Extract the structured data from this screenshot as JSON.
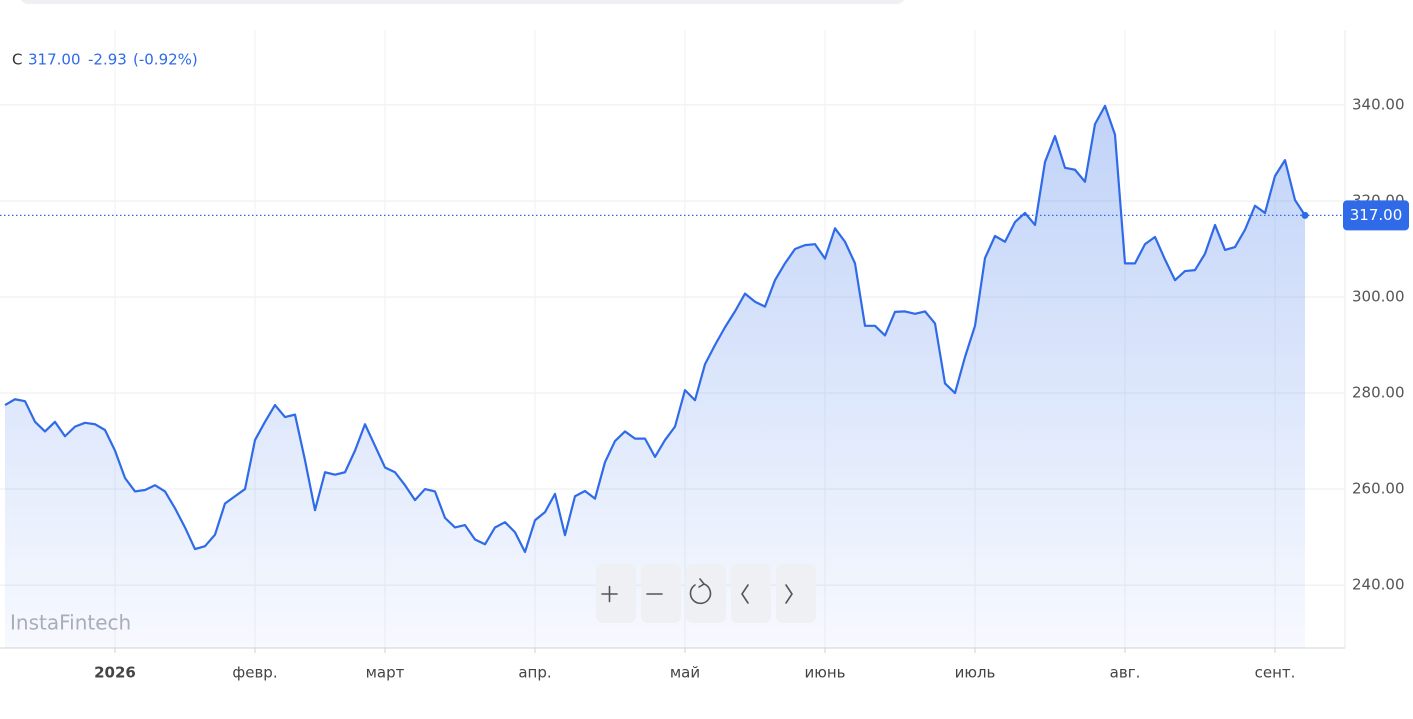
{
  "chart_data": {
    "type": "area",
    "symbol": "C",
    "last_price": {
      "value": 317,
      "label": "317.00"
    },
    "change": "-2.93",
    "change_pct": "(-0.92%)",
    "watermark": "InstaFintech",
    "color": "#2f6be8",
    "grid": true,
    "categories": [
      null,
      null,
      null,
      null,
      null,
      null,
      null,
      null,
      null,
      null,
      null,
      "2026",
      null,
      null,
      null,
      null,
      null,
      null,
      null,
      null,
      null,
      null,
      null,
      null,
      null,
      "февр.",
      null,
      null,
      null,
      null,
      null,
      null,
      null,
      null,
      null,
      null,
      null,
      null,
      "март",
      null,
      null,
      null,
      null,
      null,
      null,
      null,
      null,
      null,
      null,
      null,
      null,
      null,
      null,
      "апр.",
      null,
      null,
      null,
      null,
      null,
      null,
      null,
      null,
      null,
      null,
      null,
      null,
      null,
      null,
      "май",
      null,
      null,
      null,
      null,
      null,
      null,
      null,
      null,
      null,
      null,
      null,
      null,
      null,
      "июнь",
      null,
      null,
      null,
      null,
      null,
      null,
      null,
      null,
      null,
      null,
      null,
      null,
      null,
      null,
      "июль",
      null,
      null,
      null,
      null,
      null,
      null,
      null,
      null,
      null,
      null,
      null,
      null,
      null,
      null,
      "авг.",
      null,
      null,
      null,
      null,
      null,
      null,
      null,
      null,
      null,
      null,
      null,
      null,
      null,
      null,
      "сент.",
      null,
      null,
      null
    ],
    "values": [
      277.5,
      278.7,
      278.3,
      274,
      272,
      274,
      271,
      273,
      273.8,
      273.5,
      272.3,
      268,
      262.3,
      259.5,
      259.8,
      260.8,
      259.5,
      256,
      252,
      247.5,
      248.1,
      250.5,
      257,
      258.5,
      260,
      270.2,
      274,
      277.5,
      275,
      275.5,
      266,
      255.6,
      263.5,
      263,
      263.5,
      268,
      273.5,
      269,
      264.5,
      263.5,
      260.8,
      257.7,
      260,
      259.5,
      254,
      252,
      252.5,
      249.5,
      248.5,
      252,
      253.1,
      251,
      246.9,
      253.5,
      255.2,
      259,
      250.4,
      258.5,
      259.6,
      258,
      265.6,
      270,
      272,
      270.5,
      270.5,
      266.7,
      270.2,
      273,
      280.6,
      278.5,
      286,
      290,
      293.7,
      297,
      300.7,
      299,
      298,
      303.5,
      307,
      310,
      310.8,
      311,
      308,
      314.3,
      311.5,
      307,
      294,
      294,
      292,
      296.9,
      297,
      296.5,
      297,
      294.5,
      282,
      280,
      287.5,
      294,
      308.1,
      312.7,
      311.5,
      315.6,
      317.5,
      315,
      328.1,
      333.5,
      326.9,
      326.5,
      324,
      336,
      339.8,
      333.8,
      307,
      307,
      311,
      312.5,
      307.8,
      303.5,
      305.4,
      305.6,
      309,
      315,
      309.8,
      310.4,
      314,
      319,
      317.5,
      325.2,
      328.5,
      320.2,
      317
    ],
    "ylim": [
      226.9,
      355.6
    ],
    "yticks": [
      {
        "value": 240,
        "label": "240.00"
      },
      {
        "value": 260,
        "label": "260.00"
      },
      {
        "value": 280,
        "label": "280.00"
      },
      {
        "value": 300,
        "label": "300.00"
      },
      {
        "value": 320,
        "label": "320.00"
      },
      {
        "value": 340,
        "label": "340.00"
      }
    ]
  }
}
